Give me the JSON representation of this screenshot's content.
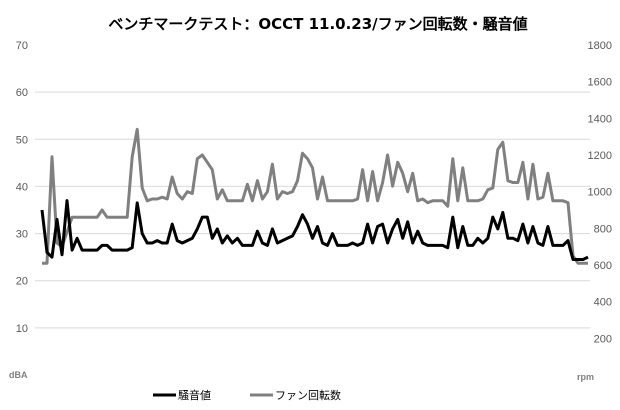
{
  "chart_data": {
    "type": "line",
    "title": "ベンチマークテスト：OCCT 11.0.23/ファン回転数・騒音値",
    "y_left": {
      "unit": "dBA",
      "range": [
        0,
        70
      ],
      "ticks": [
        "10",
        "20",
        "30",
        "40",
        "50",
        "60",
        "70"
      ]
    },
    "y_right": {
      "unit": "rpm",
      "range": [
        0,
        1800
      ],
      "ticks": [
        "200",
        "400",
        "600",
        "800",
        "1000",
        "1200",
        "1400",
        "1600",
        "1800"
      ]
    },
    "grid": true,
    "legend_position": "bottom",
    "series": [
      {
        "name": "騒音値",
        "axis": "left",
        "color": "#000000",
        "values": [
          35,
          26,
          25,
          33,
          25.5,
          37,
          26.5,
          29,
          26.5,
          26.5,
          26.5,
          26.5,
          27.5,
          27.5,
          26.5,
          26.5,
          26.5,
          26.5,
          27,
          36.5,
          30,
          28,
          28,
          28.5,
          28,
          28,
          32,
          28.5,
          28,
          28.5,
          29,
          31,
          33.5,
          33.5,
          29,
          31,
          28,
          29.5,
          28,
          29,
          27.5,
          27.5,
          27.5,
          30.5,
          28,
          27.5,
          31,
          28,
          28.5,
          29,
          29.5,
          31.5,
          34,
          32,
          29,
          31.5,
          28,
          27.5,
          30,
          27.5,
          27.5,
          27.5,
          28,
          27.5,
          28,
          32,
          28,
          31.5,
          32,
          28,
          31,
          33,
          29,
          32.5,
          28,
          30.5,
          28,
          27.5,
          27.5,
          27.5,
          27.5,
          27,
          33.5,
          27,
          31.5,
          27.5,
          27.5,
          29,
          28,
          29,
          33.5,
          31,
          34.5,
          29,
          29,
          28.5,
          32,
          28,
          31.5,
          28,
          27.5,
          31.5,
          27.5,
          27.5,
          27.5,
          28.5,
          24.5,
          24.5,
          24.5,
          25
        ]
      },
      {
        "name": "ファン回転数",
        "axis": "right",
        "color": "#808080",
        "values": [
          610,
          610,
          1190,
          720,
          700,
          780,
          860,
          860,
          860,
          860,
          860,
          860,
          900,
          860,
          860,
          860,
          860,
          860,
          1190,
          1340,
          1020,
          950,
          960,
          960,
          970,
          960,
          1080,
          990,
          960,
          1000,
          990,
          1180,
          1200,
          1160,
          1120,
          960,
          1010,
          950,
          950,
          950,
          950,
          1040,
          950,
          1060,
          960,
          1000,
          1150,
          960,
          1000,
          990,
          1000,
          1060,
          1210,
          1180,
          1130,
          960,
          1080,
          950,
          950,
          950,
          950,
          950,
          950,
          960,
          1120,
          950,
          1110,
          950,
          1050,
          1200,
          1030,
          1160,
          1100,
          1000,
          1100,
          950,
          960,
          940,
          950,
          950,
          950,
          920,
          1180,
          950,
          1130,
          950,
          950,
          950,
          960,
          1010,
          1020,
          1230,
          1270,
          1060,
          1050,
          1050,
          1160,
          960,
          1150,
          960,
          970,
          1100,
          950,
          950,
          950,
          940,
          650,
          610,
          610,
          610
        ]
      }
    ]
  }
}
